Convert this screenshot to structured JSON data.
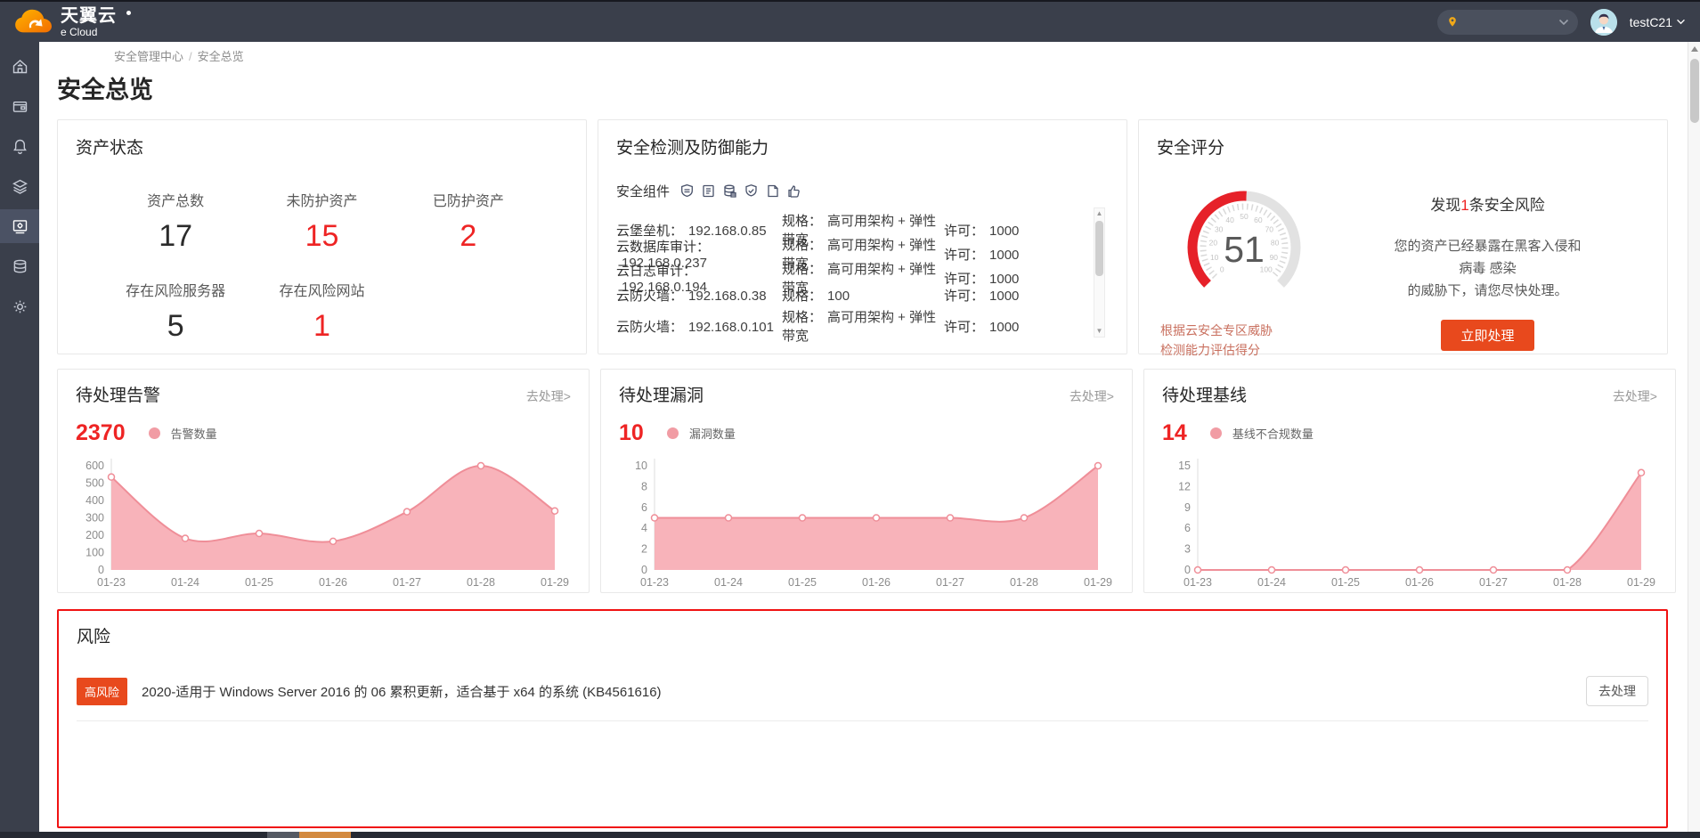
{
  "topbar": {
    "brand_cn": "天翼云",
    "brand_en": "e Cloud",
    "username": "testC21"
  },
  "breadcrumb": {
    "item1": "安全管理中心",
    "separator": "/",
    "item2": "安全总览"
  },
  "page_title": "安全总览",
  "asset_card": {
    "title": "资产状态",
    "stats": [
      {
        "label": "资产总数",
        "value": "17",
        "color": "dark"
      },
      {
        "label": "未防护资产",
        "value": "15",
        "color": "red"
      },
      {
        "label": "已防护资产",
        "value": "2",
        "color": "red"
      },
      {
        "label": "存在风险服务器",
        "value": "5",
        "color": "dark"
      },
      {
        "label": "存在风险网站",
        "value": "1",
        "color": "red"
      }
    ]
  },
  "detection_card": {
    "title": "安全检测及防御能力",
    "components_label": "安全组件",
    "component_icons": [
      "shield-icon",
      "audit-list-icon",
      "database-icon",
      "badge-shield-icon",
      "file-icon",
      "thumbs-up-icon"
    ],
    "rows": [
      {
        "name": "云堡垒机：",
        "value": "192.168.0.85",
        "spec_label": "规格：",
        "spec": "高可用架构 + 弹性带宽",
        "lic_label": "许可：",
        "lic": "1000"
      },
      {
        "name": "云数据库审计：",
        "value": "192.168.0.237",
        "spec_label": "规格：",
        "spec": "高可用架构 + 弹性带宽",
        "lic_label": "许可：",
        "lic": "1000"
      },
      {
        "name": "云日志审计：",
        "value": "192.168.0.194",
        "spec_label": "规格：",
        "spec": "高可用架构 + 弹性带宽",
        "lic_label": "许可：",
        "lic": "1000"
      },
      {
        "name": "云防火墙：",
        "value": "192.168.0.38",
        "spec_label": "规格：",
        "spec": "100",
        "lic_label": "许可：",
        "lic": "1000"
      },
      {
        "name": "云防火墙：",
        "value": "192.168.0.101",
        "spec_label": "规格：",
        "spec": "高可用架构 + 弹性带宽",
        "lic_label": "许可：",
        "lic": "1000"
      }
    ]
  },
  "score_card": {
    "title": "安全评分",
    "score": "51",
    "gauge_ticks": [
      "0",
      "10",
      "20",
      "30",
      "40",
      "50",
      "60",
      "70",
      "80",
      "90",
      "100"
    ],
    "found_prefix": "发现",
    "found_count": "1",
    "found_suffix": "条安全风险",
    "desc_line1": "您的资产已经暴露在黑客入侵和病毒 感染",
    "desc_line2": "的威胁下，请您尽快处理。",
    "button": "立即处理",
    "note_line1": "根据云安全专区威胁",
    "note_line2": "检测能力评估得分"
  },
  "charts": [
    {
      "title": "待处理告警",
      "action": "去处理>",
      "total": "2370",
      "legend": "告警数量"
    },
    {
      "title": "待处理漏洞",
      "action": "去处理>",
      "total": "10",
      "legend": "漏洞数量"
    },
    {
      "title": "待处理基线",
      "action": "去处理>",
      "total": "14",
      "legend": "基线不合规数量"
    }
  ],
  "chart_data": [
    {
      "type": "area",
      "title": "待处理告警",
      "legend": "告警数量",
      "x": [
        "01-23",
        "01-24",
        "01-25",
        "01-26",
        "01-27",
        "01-28",
        "01-29"
      ],
      "series": [
        {
          "name": "告警数量",
          "values": [
            535,
            182,
            210,
            165,
            335,
            600,
            340
          ]
        }
      ],
      "ylim": [
        0,
        600
      ],
      "yticks": [
        0,
        100,
        200,
        300,
        400,
        500,
        600
      ],
      "fill": "#f7abb2",
      "line_color": "#ef8e98",
      "grid": false,
      "legend_position": "top-left"
    },
    {
      "type": "area",
      "title": "待处理漏洞",
      "legend": "漏洞数量",
      "x": [
        "01-23",
        "01-24",
        "01-25",
        "01-26",
        "01-27",
        "01-28",
        "01-29"
      ],
      "series": [
        {
          "name": "漏洞数量",
          "values": [
            5,
            5,
            5,
            5,
            5,
            5,
            10
          ]
        }
      ],
      "ylim": [
        0,
        10
      ],
      "yticks": [
        0,
        2,
        4,
        6,
        8,
        10
      ],
      "fill": "#f7abb2",
      "line_color": "#ef8e98",
      "grid": false,
      "legend_position": "top-left"
    },
    {
      "type": "area",
      "title": "待处理基线",
      "legend": "基线不合规数量",
      "x": [
        "01-23",
        "01-24",
        "01-25",
        "01-26",
        "01-27",
        "01-28",
        "01-29"
      ],
      "series": [
        {
          "name": "基线不合规数量",
          "values": [
            0,
            0,
            0,
            0,
            0,
            0,
            14
          ]
        }
      ],
      "ylim": [
        0,
        15
      ],
      "yticks": [
        0,
        3,
        6,
        9,
        12,
        15
      ],
      "fill": "#f7abb2",
      "line_color": "#ef8e98",
      "grid": false,
      "legend_position": "top-left"
    }
  ],
  "risk_section": {
    "title": "风险",
    "badge": "高风险",
    "description": "2020-适用于 Windows Server 2016 的 06 累积更新，适合基于 x64 的系统 (KB4561616)",
    "action": "去处理"
  },
  "colors": {
    "topbar_bg": "#3a3f4b",
    "accent_red": "#ee2424",
    "chart_pink_fill": "#f7abb2",
    "chart_pink_line": "#ef8e98",
    "button_orange": "#e8491d",
    "risk_border_red": "#f01212"
  }
}
